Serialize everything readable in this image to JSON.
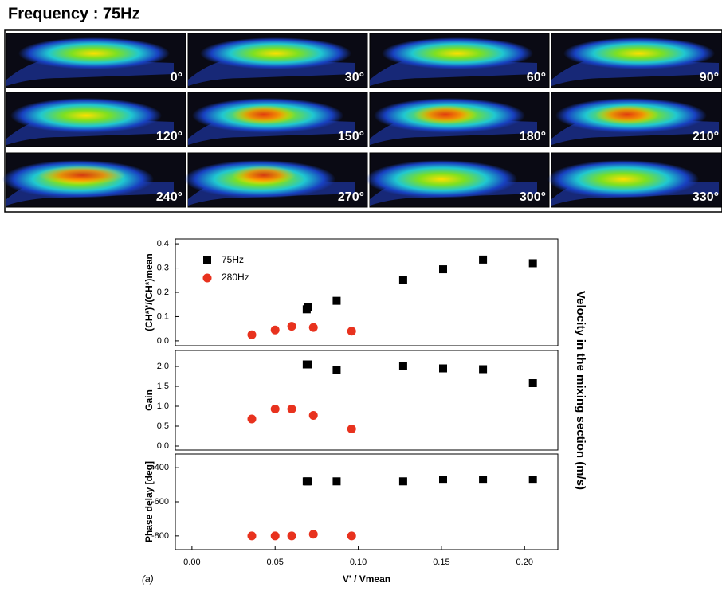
{
  "header": {
    "title": "Frequency : 75Hz"
  },
  "images": {
    "labels": [
      "0°",
      "30°",
      "60°",
      "90°",
      "120°",
      "150°",
      "180°",
      "210°",
      "240°",
      "270°",
      "300°",
      "330°"
    ]
  },
  "figure_text": {
    "right_label": "Velocity in the mixing section (m/s)",
    "panel_label": "(a)"
  },
  "chart_data": [
    {
      "type": "scatter",
      "ylabel": "(CH*)'/(CH*)mean",
      "xlim": [
        -0.01,
        0.22
      ],
      "ylim": [
        -0.02,
        0.42
      ],
      "yticks": [
        {
          "value": 0,
          "label": "0.0"
        },
        0.1,
        0.2,
        0.3,
        0.4
      ],
      "legend": "upper left",
      "series": [
        {
          "name": "75Hz",
          "color": "#000000",
          "marker": "square",
          "x": [
            0.069,
            0.07,
            0.087,
            0.127,
            0.151,
            0.175,
            0.205
          ],
          "values": [
            0.13,
            0.14,
            0.165,
            0.25,
            0.295,
            0.335,
            0.32
          ]
        },
        {
          "name": "280Hz",
          "color": "#e8321e",
          "marker": "circle",
          "x": [
            0.036,
            0.05,
            0.06,
            0.073,
            0.096
          ],
          "values": [
            0.025,
            0.045,
            0.06,
            0.055,
            0.04
          ]
        }
      ]
    },
    {
      "type": "scatter",
      "ylabel": "Gain",
      "xlim": [
        -0.01,
        0.22
      ],
      "ylim": [
        -0.1,
        2.4
      ],
      "yticks": [
        {
          "value": 0,
          "label": "0.0"
        },
        0.5,
        {
          "value": 1,
          "label": "1.0"
        },
        1.5,
        {
          "value": 2,
          "label": "2.0"
        }
      ],
      "series": [
        {
          "color": "#000000",
          "marker": "square",
          "x": [
            0.069,
            0.07,
            0.087,
            0.127,
            0.151,
            0.175,
            0.205
          ],
          "values": [
            2.05,
            2.05,
            1.9,
            2.0,
            1.95,
            1.93,
            1.58
          ]
        },
        {
          "color": "#e8321e",
          "marker": "circle",
          "x": [
            0.036,
            0.05,
            0.06,
            0.073,
            0.096
          ],
          "values": [
            0.68,
            0.93,
            0.93,
            0.77,
            0.43
          ]
        }
      ]
    },
    {
      "type": "scatter",
      "ylabel": "Phase delay [deg]",
      "xlabel": "V' / Vmean",
      "xlim": [
        -0.01,
        0.22
      ],
      "ylim": [
        -880,
        -320
      ],
      "xticks": [
        {
          "value": 0,
          "label": "0.00"
        },
        0.05,
        {
          "value": 0.1,
          "label": "0.10"
        },
        0.15,
        {
          "value": 0.2,
          "label": "0.20"
        }
      ],
      "yticks": [
        -400,
        -600,
        -800
      ],
      "series": [
        {
          "color": "#000000",
          "marker": "square",
          "x": [
            0.069,
            0.07,
            0.087,
            0.127,
            0.151,
            0.175,
            0.205
          ],
          "values": [
            -480,
            -480,
            -480,
            -480,
            -470,
            -470,
            -470
          ]
        },
        {
          "color": "#e8321e",
          "marker": "circle",
          "x": [
            0.036,
            0.05,
            0.06,
            0.073,
            0.096
          ],
          "values": [
            -800,
            -800,
            -800,
            -790,
            -800
          ]
        }
      ]
    }
  ]
}
